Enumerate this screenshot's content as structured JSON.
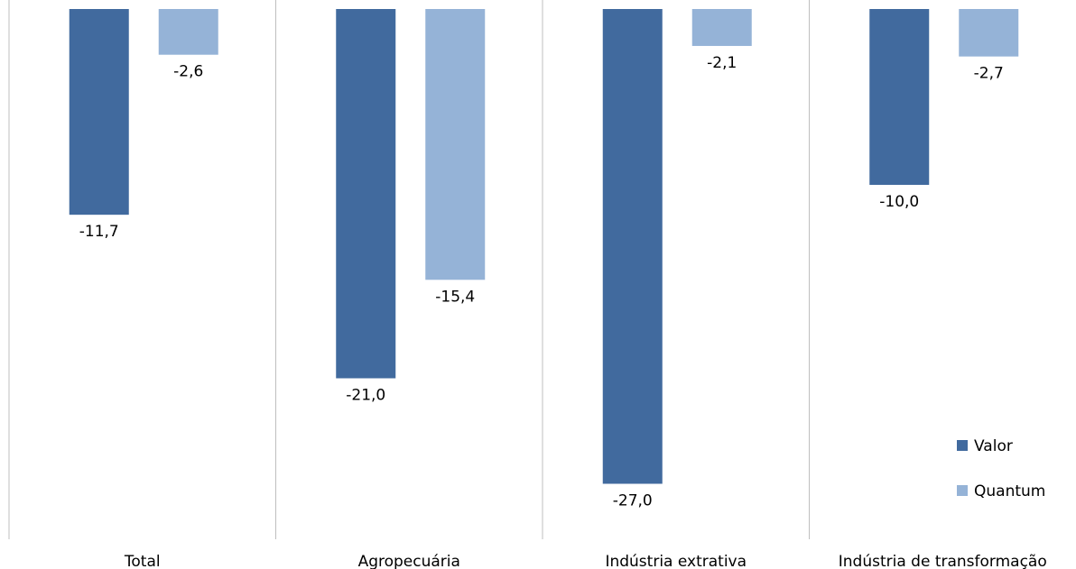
{
  "chart_data": {
    "type": "bar",
    "categories": [
      "Total",
      "Agropecuária",
      "Indústria extrativa",
      "Indústria de transformação"
    ],
    "series": [
      {
        "name": "Valor",
        "values": [
          -11.7,
          -21.0,
          -27.0,
          -10.0
        ],
        "labels": [
          "-11,7",
          "-21,0",
          "-27,0",
          "-10,0"
        ],
        "color": "#416A9E"
      },
      {
        "name": "Quantum",
        "values": [
          -2.6,
          -15.4,
          -2.1,
          -2.7
        ],
        "labels": [
          "-2,6",
          "-15,4",
          "-2,1",
          "-2,7"
        ],
        "color": "#95B3D7"
      }
    ],
    "ylim": [
      -30,
      0
    ],
    "grid": false,
    "category_separators": true,
    "legend_position": "bottom-right",
    "title": "",
    "xlabel": "",
    "ylabel": ""
  }
}
